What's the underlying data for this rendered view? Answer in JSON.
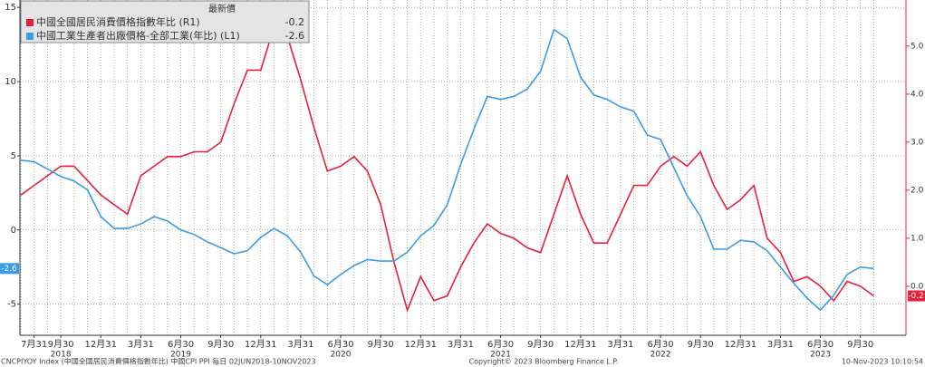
{
  "chart_data": {
    "type": "line",
    "legend_title": "最新價",
    "categories": [
      null,
      "7月31",
      null,
      "9月30",
      null,
      null,
      "12月31",
      null,
      null,
      "3月31",
      null,
      null,
      "6月30",
      null,
      null,
      "9月30",
      null,
      null,
      "12月31",
      null,
      null,
      "3月31",
      null,
      null,
      "6月30",
      null,
      null,
      "9月30",
      null,
      null,
      "12月31",
      null,
      null,
      "3月31",
      null,
      null,
      "6月30",
      null,
      null,
      "9月30",
      null,
      null,
      "12月31",
      null,
      null,
      "3月31",
      null,
      null,
      "6月30",
      null,
      null,
      "9月30",
      null,
      null,
      "12月31",
      null,
      null,
      "3月31",
      null,
      null,
      "6月30",
      null,
      null,
      "9月30",
      null
    ],
    "year_labels": [
      null,
      null,
      null,
      "2018",
      null,
      null,
      null,
      null,
      null,
      null,
      null,
      null,
      "2019",
      null,
      null,
      null,
      null,
      null,
      null,
      null,
      null,
      null,
      null,
      null,
      "2020",
      null,
      null,
      null,
      null,
      null,
      null,
      null,
      null,
      null,
      null,
      null,
      "2021",
      null,
      null,
      null,
      null,
      null,
      null,
      null,
      null,
      null,
      null,
      null,
      "2022",
      null,
      null,
      null,
      null,
      null,
      null,
      null,
      null,
      null,
      null,
      null,
      "2023",
      null,
      null,
      null,
      null
    ],
    "series": [
      {
        "name": "中國全國居民消費價格指數年比 (R1)",
        "color": "#e8203a",
        "axis": "y2",
        "values": [
          1.9,
          2.1,
          2.3,
          2.5,
          2.5,
          2.2,
          1.9,
          1.7,
          1.5,
          2.3,
          2.5,
          2.7,
          2.7,
          2.8,
          2.8,
          3.0,
          3.8,
          4.5,
          4.5,
          5.4,
          5.2,
          4.3,
          3.3,
          2.4,
          2.5,
          2.7,
          2.4,
          1.7,
          0.5,
          -0.5,
          0.2,
          -0.3,
          -0.2,
          0.4,
          0.9,
          1.3,
          1.1,
          1.0,
          0.8,
          0.7,
          1.5,
          2.3,
          1.5,
          0.9,
          0.9,
          1.5,
          2.1,
          2.1,
          2.5,
          2.7,
          2.5,
          2.8,
          2.1,
          1.6,
          1.8,
          2.1,
          1.0,
          0.7,
          0.1,
          0.2,
          0.0,
          -0.3,
          0.1,
          0.0,
          -0.2
        ]
      },
      {
        "name": "中國工業生產者出廠價格-全部工業(年比) (L1)",
        "color": "#3a9be8",
        "axis": "y",
        "values": [
          4.7,
          4.6,
          4.1,
          3.6,
          3.3,
          2.7,
          0.9,
          0.1,
          0.1,
          0.4,
          0.9,
          0.6,
          0.0,
          -0.3,
          -0.8,
          -1.2,
          -1.6,
          -1.4,
          -0.5,
          0.1,
          -0.4,
          -1.5,
          -3.1,
          -3.7,
          -3.0,
          -2.4,
          -2.0,
          -2.1,
          -2.1,
          -1.5,
          -0.4,
          0.3,
          1.7,
          4.4,
          6.8,
          9.0,
          8.8,
          9.0,
          9.5,
          10.7,
          13.5,
          12.9,
          10.3,
          9.1,
          8.8,
          8.3,
          8.0,
          6.4,
          6.1,
          4.2,
          2.3,
          0.9,
          -1.3,
          -1.3,
          -0.7,
          -0.8,
          -1.4,
          -2.5,
          -3.6,
          -4.6,
          -5.4,
          -4.4,
          -3.0,
          -2.5,
          -2.6
        ]
      }
    ],
    "ylim": [
      -7.1,
      15.5
    ],
    "yticks": [
      -5,
      0,
      5,
      10,
      15
    ],
    "y2lim": [
      -1.02,
      5.96
    ],
    "y2ticks": [
      {
        "value": 0,
        "label": "0.0"
      },
      {
        "value": 1,
        "label": "1.0"
      },
      {
        "value": 2,
        "label": "2.0"
      },
      {
        "value": 3,
        "label": "3.0"
      },
      {
        "value": 4,
        "label": "4.0"
      },
      {
        "value": 5,
        "label": "5.0"
      }
    ],
    "grid": true,
    "footer": {
      "left": "CNCPIYOY Index (中國全國居民消費價格指數年比) 中國CPI PPI 每日 02JUN2018-10NOV2023",
      "center": "Copyright© 2023 Bloomberg Finance L.P.",
      "right": "10-Nov-2023 10:10:54"
    }
  }
}
